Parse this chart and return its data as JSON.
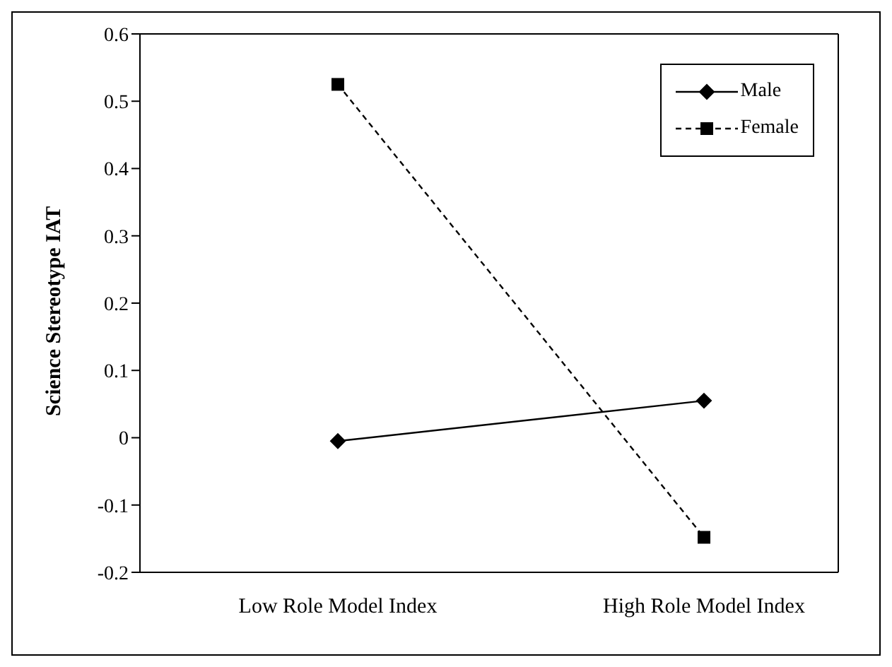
{
  "chart_data": {
    "type": "line",
    "ylabel": "Science Stereotype IAT",
    "categories": [
      "Low Role Model Index",
      "High Role Model Index"
    ],
    "series": [
      {
        "name": "Male",
        "color": "#000000",
        "values": [
          -0.005,
          0.055
        ],
        "marker": "diamond",
        "line_style": "solid"
      },
      {
        "name": "Female",
        "color": "#000000",
        "values": [
          0.525,
          -0.148
        ],
        "marker": "square",
        "line_style": "dashed"
      }
    ],
    "ylim": [
      -0.2,
      0.6
    ],
    "yticks": [
      -0.2,
      -0.1,
      0,
      0.1,
      0.2,
      0.3,
      0.4,
      0.5,
      0.6
    ],
    "grid": false,
    "legend": "top right"
  }
}
